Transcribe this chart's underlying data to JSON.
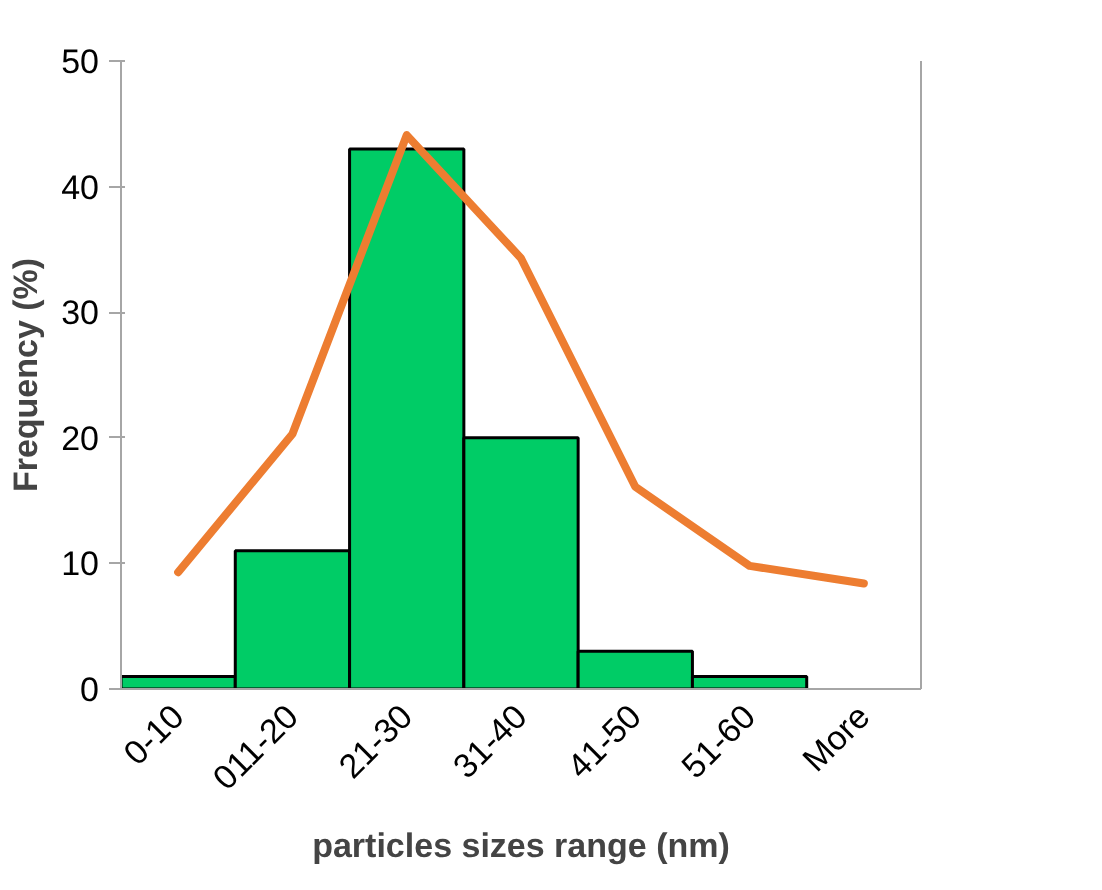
{
  "chart_data": {
    "type": "bar",
    "xlabel": "particles sizes range (nm)",
    "ylabel": "Frequency (%)",
    "categories": [
      "0-10",
      "011-20",
      "21-30",
      "31-40",
      "41-50",
      "51-60",
      "More"
    ],
    "series": [
      {
        "color": "#00cc66",
        "values": [
          1,
          11,
          43,
          20,
          3,
          1,
          0
        ]
      },
      {
        "type": "line",
        "color": "#ed7d31",
        "values": [
          9.3,
          20.3,
          44.1,
          34.3,
          16.1,
          9.8,
          8.4
        ]
      }
    ],
    "ylim": [
      0,
      50
    ],
    "yticks": [
      0,
      10,
      20,
      30,
      40,
      50
    ],
    "grid": false
  }
}
